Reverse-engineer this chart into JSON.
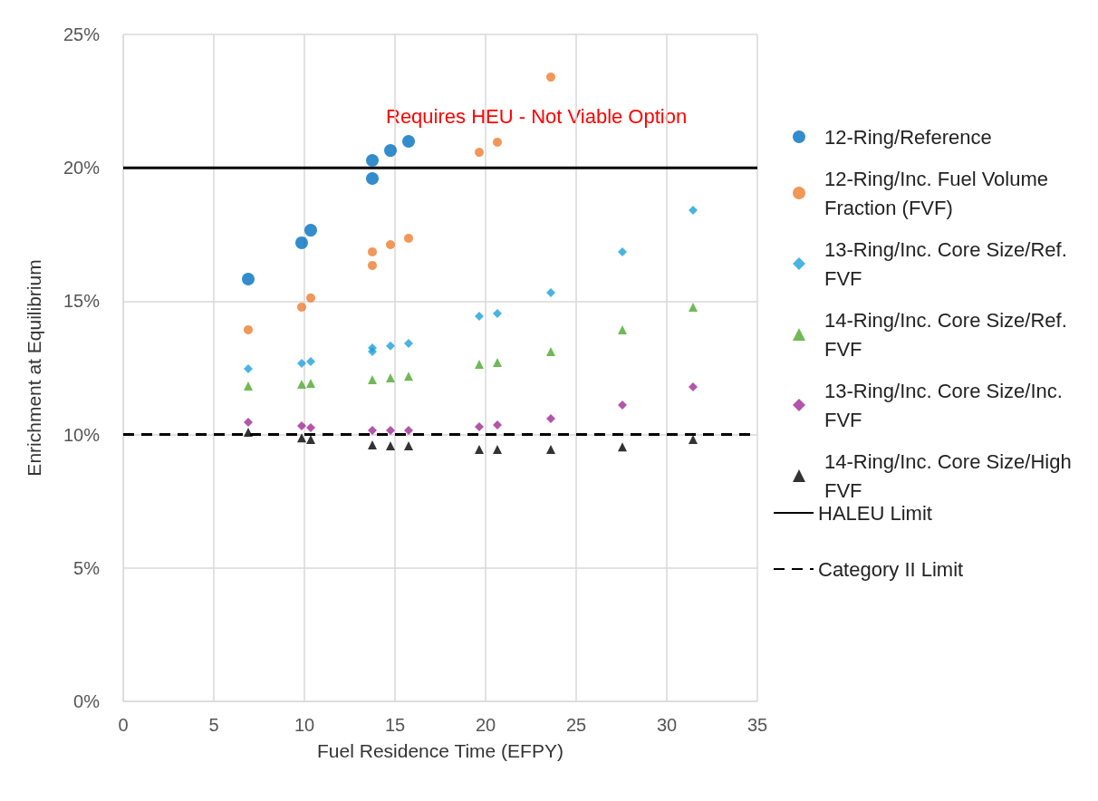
{
  "chart_data": {
    "type": "scatter",
    "xlabel": "Fuel Residence Time (EFPY)",
    "ylabel": "Enrichment at Equilibrium",
    "xlim": [
      0,
      35
    ],
    "xticks": [
      0,
      5,
      10,
      15,
      20,
      25,
      30,
      35
    ],
    "ylim": [
      0,
      25
    ],
    "yticks": [
      {
        "value": 0,
        "label": "0%"
      },
      {
        "value": 5,
        "label": "5%"
      },
      {
        "value": 10,
        "label": "10%"
      },
      {
        "value": 15,
        "label": "15%"
      },
      {
        "value": 20,
        "label": "20%"
      },
      {
        "value": 25,
        "label": "25%"
      }
    ],
    "grid": true,
    "legend": "right",
    "series": [
      {
        "name": "12-Ring/Reference",
        "color": "#0070c0",
        "marker": "circle",
        "x": [
          6.9,
          9.85,
          10.35,
          13.75,
          13.75,
          14.75,
          15.75
        ],
        "values": [
          15.83,
          17.19,
          17.66,
          19.6,
          20.28,
          20.65,
          20.99
        ]
      },
      {
        "name": "12-Ring/Inc. Fuel Volume Fraction (FVF)",
        "color": "#ed7d31",
        "marker": "circle",
        "x": [
          6.9,
          9.85,
          10.35,
          13.75,
          13.75,
          14.75,
          15.75,
          19.65,
          20.65,
          23.6
        ],
        "values": [
          13.93,
          14.78,
          15.12,
          16.34,
          16.85,
          17.12,
          17.36,
          20.58,
          20.96,
          23.4
        ]
      },
      {
        "name": "13-Ring/Inc. Core Size/Ref. FVF",
        "color": "#1ba1d9",
        "marker": "diamond",
        "x": [
          6.9,
          9.85,
          10.35,
          13.75,
          13.75,
          14.75,
          15.75,
          19.65,
          20.65,
          23.6,
          27.55,
          31.45
        ],
        "values": [
          12.47,
          12.67,
          12.74,
          13.11,
          13.25,
          13.32,
          13.42,
          14.44,
          14.54,
          15.32,
          16.85,
          18.41
        ]
      },
      {
        "name": "14-Ring/Inc. Core Size/Ref. FVF",
        "color": "#4ea72e",
        "marker": "triangle",
        "x": [
          6.9,
          9.85,
          10.35,
          13.75,
          14.75,
          15.75,
          19.65,
          20.65,
          23.6,
          27.55,
          31.45
        ],
        "values": [
          11.82,
          11.89,
          11.92,
          12.06,
          12.13,
          12.19,
          12.64,
          12.7,
          13.11,
          13.93,
          14.78
        ]
      },
      {
        "name": "13-Ring/Inc. Core Size/Inc. FVF",
        "color": "#a02b93",
        "marker": "diamond",
        "x": [
          6.9,
          9.85,
          10.35,
          13.75,
          14.75,
          15.75,
          19.65,
          20.65,
          23.6,
          27.55,
          31.45
        ],
        "values": [
          10.46,
          10.33,
          10.26,
          10.16,
          10.16,
          10.16,
          10.29,
          10.36,
          10.6,
          11.11,
          11.79
        ]
      },
      {
        "name": "14-Ring/Inc. Core Size/High FVF",
        "color": "#000000",
        "marker": "triangle",
        "x": [
          6.9,
          9.85,
          10.35,
          13.75,
          14.75,
          15.75,
          19.65,
          20.65,
          23.6,
          27.55,
          31.45
        ],
        "values": [
          10.09,
          9.88,
          9.82,
          9.61,
          9.58,
          9.58,
          9.44,
          9.44,
          9.44,
          9.54,
          9.82
        ]
      }
    ],
    "ref_lines": [
      {
        "axis": "y",
        "value": 20,
        "label": "HALEU Limit",
        "color": "#000000",
        "line_style": "solid"
      },
      {
        "axis": "y",
        "value": 10,
        "label": "Category II Limit",
        "color": "#000000",
        "line_style": "dashed"
      }
    ],
    "annotations": [
      "Requires HEU - Not Viable Option"
    ]
  }
}
